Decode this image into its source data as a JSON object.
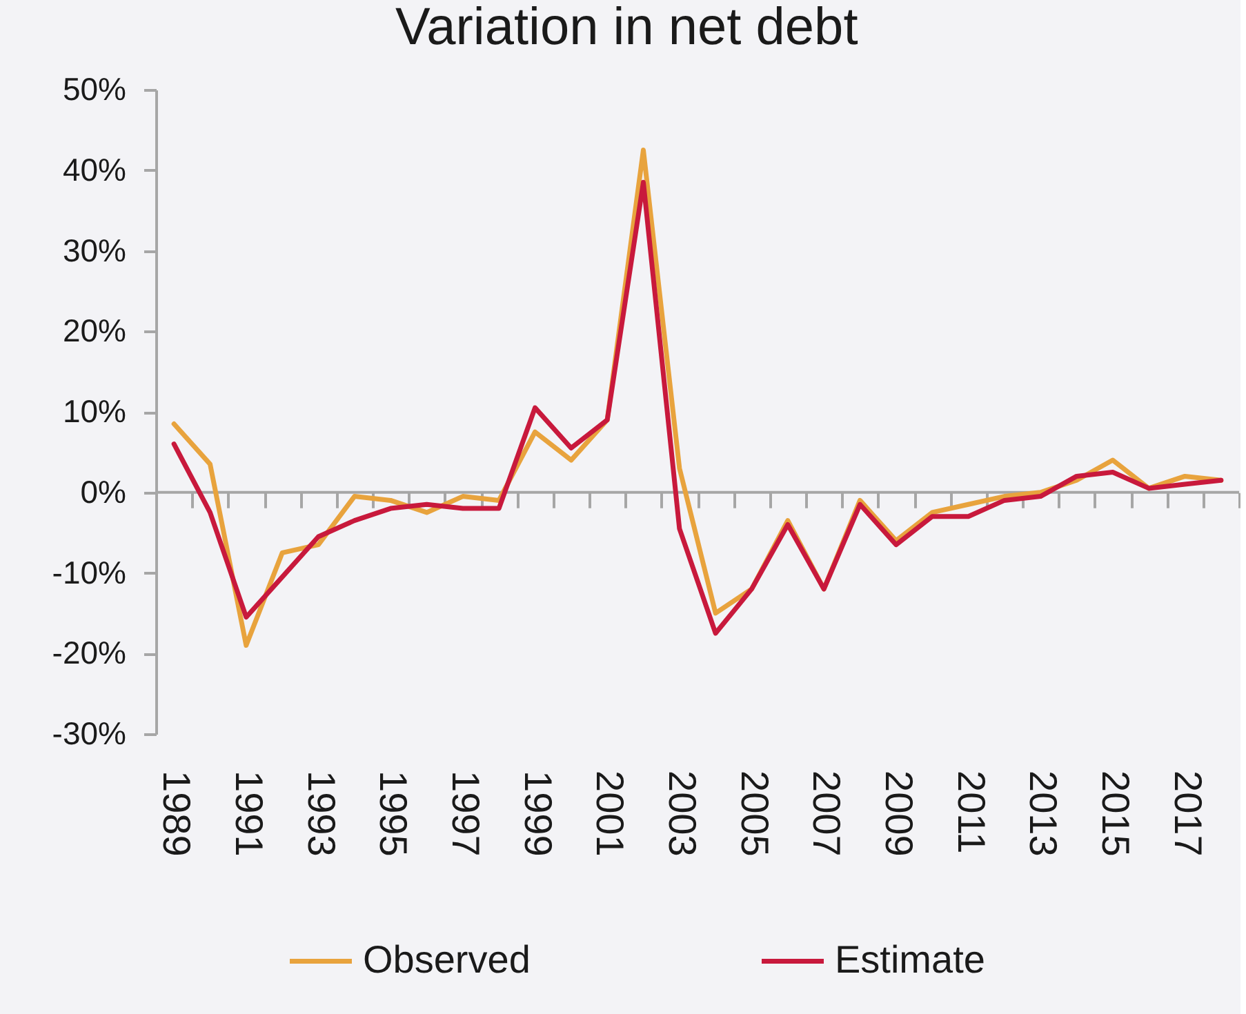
{
  "chart_data": {
    "type": "line",
    "title": "Variation in net debt",
    "categories": [
      "1989",
      null,
      "1991",
      null,
      "1993",
      null,
      "1995",
      null,
      "1997",
      null,
      "1999",
      null,
      "2001",
      null,
      "2003",
      null,
      "2005",
      null,
      "2007",
      null,
      "2009",
      null,
      "2011",
      null,
      "2013",
      null,
      "2015",
      null,
      "2017",
      null
    ],
    "series": [
      {
        "name": "Observed",
        "color": "#e8a33d",
        "values": [
          8.5,
          3.5,
          -19,
          -7.5,
          -6.5,
          -0.5,
          -1,
          -2.5,
          -0.5,
          -1,
          7.5,
          4,
          9,
          42.5,
          3,
          -15,
          -12,
          -3.5,
          -12,
          -1,
          -6,
          -2.5,
          -1.5,
          -0.5,
          0,
          1.5,
          4,
          0.5,
          2,
          1.5
        ]
      },
      {
        "name": "Estimate",
        "color": "#c8193c",
        "values": [
          6,
          -2.5,
          -15.5,
          -10.5,
          -5.5,
          -3.5,
          -2,
          -1.5,
          -2,
          -2,
          10.5,
          5.5,
          9,
          38.5,
          -4.5,
          -17.5,
          -12,
          -4,
          -12,
          -1.5,
          -6.5,
          -3,
          -3,
          -1,
          -0.5,
          2,
          2.5,
          0.5,
          1,
          1.5
        ]
      }
    ],
    "ylim": [
      -30,
      50
    ],
    "yticks": [
      {
        "value": -30,
        "label": "-30%"
      },
      {
        "value": -20,
        "label": "-20%"
      },
      {
        "value": -10,
        "label": "-10%"
      },
      {
        "value": 0,
        "label": "0%"
      },
      {
        "value": 10,
        "label": "10%"
      },
      {
        "value": 20,
        "label": "20%"
      },
      {
        "value": 30,
        "label": "30%"
      },
      {
        "value": 40,
        "label": "40%"
      },
      {
        "value": 50,
        "label": "50%"
      }
    ],
    "ref_lines": [
      {
        "axis": "y",
        "value": 0,
        "color": "#a6a6a6",
        "line_style": "solid"
      }
    ],
    "grid": false,
    "legend": "bottom",
    "marker": "none",
    "line_style": "solid"
  }
}
